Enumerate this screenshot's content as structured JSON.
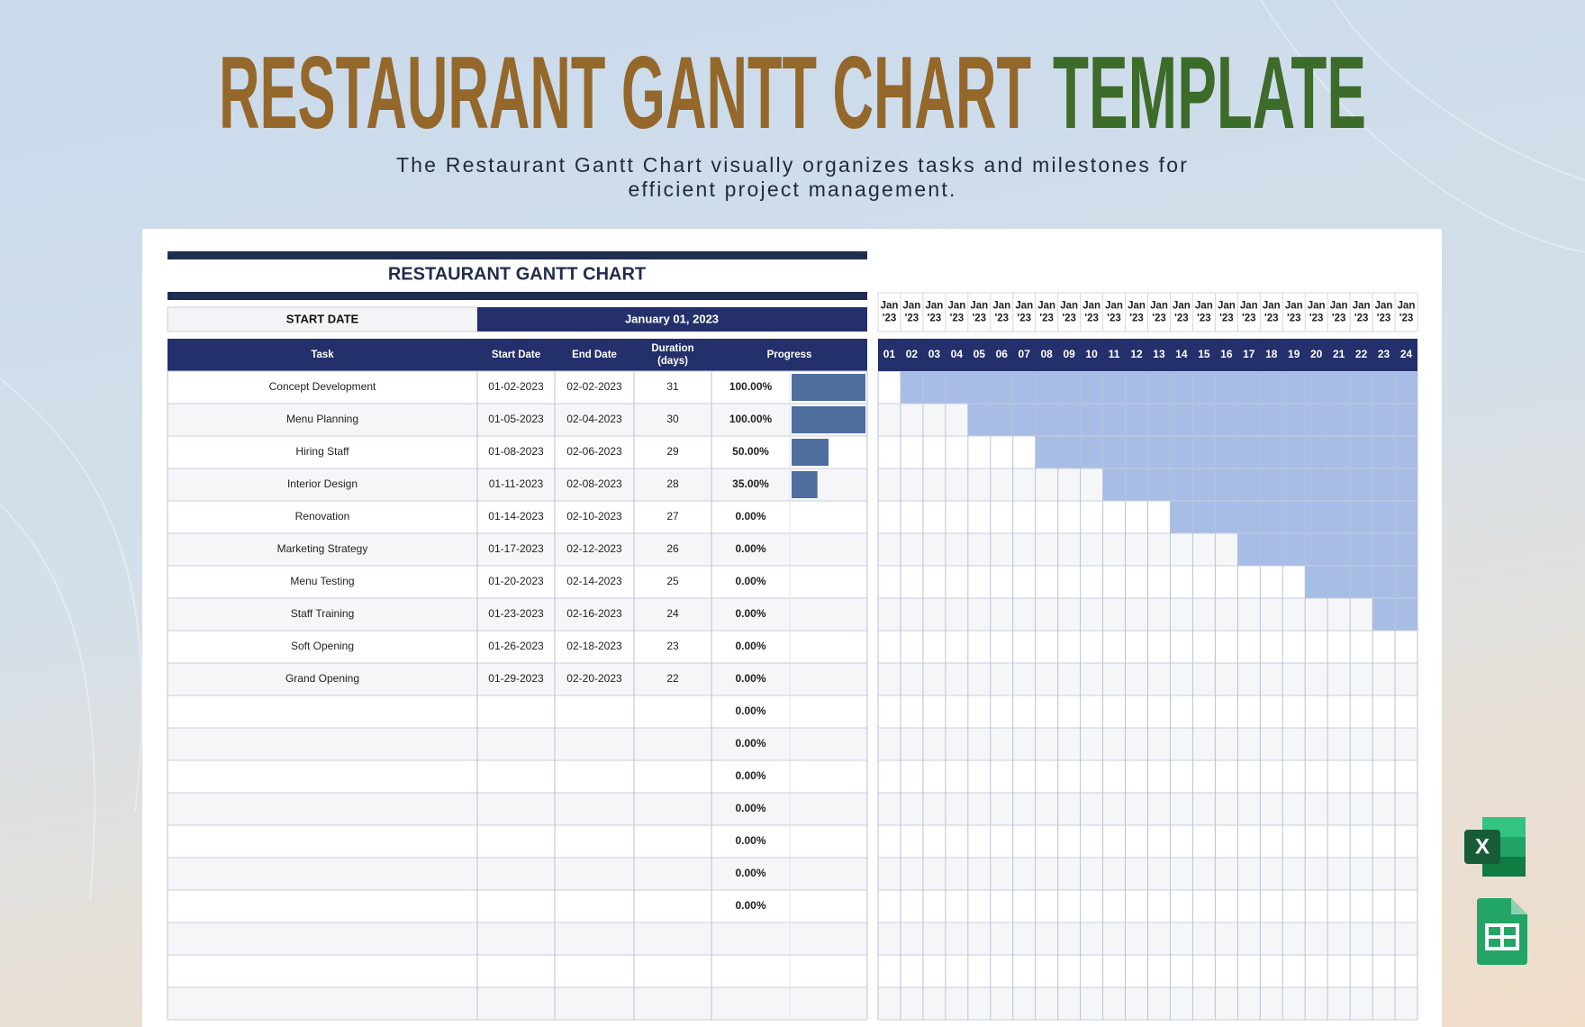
{
  "header": {
    "title_main": "RESTAURANT GANTT CHART",
    "title_accent": "TEMPLATE",
    "subtitle_line1": "The Restaurant Gantt Chart visually organizes tasks and milestones for",
    "subtitle_line2": "efficient project management."
  },
  "sheet": {
    "title": "RESTAURANT GANTT CHART",
    "start_date_label": "START DATE",
    "start_date": "January 01, 2023",
    "columns": [
      "Task",
      "Start Date",
      "End Date",
      "Duration (days)",
      "Progress"
    ],
    "rows": [
      {
        "task": "Concept Development",
        "start": "01-02-2023",
        "end": "02-02-2023",
        "duration": 31,
        "progress": 100,
        "progress_label": "100.00%"
      },
      {
        "task": "Menu Planning",
        "start": "01-05-2023",
        "end": "02-04-2023",
        "duration": 30,
        "progress": 100,
        "progress_label": "100.00%"
      },
      {
        "task": "Hiring Staff",
        "start": "01-08-2023",
        "end": "02-06-2023",
        "duration": 29,
        "progress": 50,
        "progress_label": "50.00%"
      },
      {
        "task": "Interior Design",
        "start": "01-11-2023",
        "end": "02-08-2023",
        "duration": 28,
        "progress": 35,
        "progress_label": "35.00%"
      },
      {
        "task": "Renovation",
        "start": "01-14-2023",
        "end": "02-10-2023",
        "duration": 27,
        "progress": 0,
        "progress_label": "0.00%"
      },
      {
        "task": "Marketing Strategy",
        "start": "01-17-2023",
        "end": "02-12-2023",
        "duration": 26,
        "progress": 0,
        "progress_label": "0.00%"
      },
      {
        "task": "Menu Testing",
        "start": "01-20-2023",
        "end": "02-14-2023",
        "duration": 25,
        "progress": 0,
        "progress_label": "0.00%"
      },
      {
        "task": "Staff Training",
        "start": "01-23-2023",
        "end": "02-16-2023",
        "duration": 24,
        "progress": 0,
        "progress_label": "0.00%"
      },
      {
        "task": "Soft Opening",
        "start": "01-26-2023",
        "end": "02-18-2023",
        "duration": 23,
        "progress": 0,
        "progress_label": "0.00%"
      },
      {
        "task": "Grand Opening",
        "start": "01-29-2023",
        "end": "02-20-2023",
        "duration": 22,
        "progress": 0,
        "progress_label": "0.00%"
      }
    ],
    "empty_rows": [
      {
        "progress": 0,
        "progress_label": "0.00%"
      },
      {
        "progress": 0,
        "progress_label": "0.00%"
      },
      {
        "progress": 0,
        "progress_label": "0.00%"
      },
      {
        "progress": 0,
        "progress_label": "0.00%"
      },
      {
        "progress": 0,
        "progress_label": "0.00%"
      },
      {
        "progress": 0,
        "progress_label": "0.00%"
      },
      {
        "progress": 0,
        "progress_label": "0.00%"
      }
    ]
  },
  "timeline": {
    "month_labels": [
      "Jan '23",
      "Jan '23",
      "Jan '23",
      "Jan '23",
      "Jan '23",
      "Jan '23",
      "Jan '23",
      "Jan '23",
      "Jan '23",
      "Jan '23",
      "Jan '23",
      "Jan '23",
      "Jan '23",
      "Jan '23",
      "Jan '23",
      "Jan '23",
      "Jan '23",
      "Jan '23",
      "Jan '23",
      "Jan '23",
      "Jan '23",
      "Jan '23",
      "Jan '23",
      "Jan '23"
    ],
    "days": [
      "01",
      "02",
      "03",
      "04",
      "05",
      "06",
      "07",
      "08",
      "09",
      "10",
      "11",
      "12",
      "13",
      "14",
      "15",
      "16",
      "17",
      "18",
      "19",
      "20",
      "21",
      "22",
      "23",
      "24"
    ]
  }
}
